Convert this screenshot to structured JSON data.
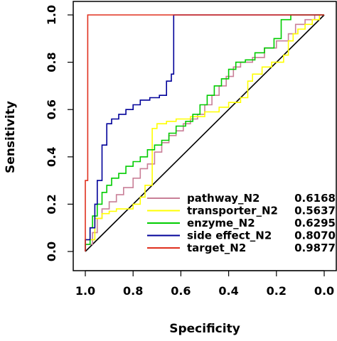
{
  "chart_data": {
    "type": "line",
    "title": "",
    "xlabel": "Specificity",
    "ylabel": "Sensitivity",
    "xlim": [
      1.0,
      0.0
    ],
    "ylim": [
      0.0,
      1.0
    ],
    "x_axis_reversed": true,
    "grid": false,
    "legend_position": "bottom-right",
    "x_ticks": [
      "1.0",
      "0.8",
      "0.6",
      "0.4",
      "0.2",
      "0.0"
    ],
    "x_tick_values": [
      1.0,
      0.8,
      0.6,
      0.4,
      0.2,
      0.0
    ],
    "y_ticks": [
      "0.0",
      "0.2",
      "0.4",
      "0.6",
      "0.8",
      "1.0"
    ],
    "y_tick_values": [
      0.0,
      0.2,
      0.4,
      0.6,
      0.8,
      1.0
    ],
    "reference_line": {
      "from": [
        1.0,
        0.0
      ],
      "to": [
        0.0,
        1.0
      ],
      "color": "#000000"
    },
    "series": [
      {
        "name": "pathway_N2",
        "auc": "0.6168",
        "color": "#c97f97",
        "points": [
          [
            1.0,
            0.0
          ],
          [
            0.97,
            0.03
          ],
          [
            0.95,
            0.08
          ],
          [
            0.93,
            0.14
          ],
          [
            0.9,
            0.18
          ],
          [
            0.87,
            0.21
          ],
          [
            0.84,
            0.24
          ],
          [
            0.8,
            0.27
          ],
          [
            0.77,
            0.31
          ],
          [
            0.74,
            0.35
          ],
          [
            0.71,
            0.37
          ],
          [
            0.68,
            0.42
          ],
          [
            0.65,
            0.46
          ],
          [
            0.62,
            0.49
          ],
          [
            0.59,
            0.51
          ],
          [
            0.56,
            0.54
          ],
          [
            0.53,
            0.56
          ],
          [
            0.5,
            0.58
          ],
          [
            0.47,
            0.62
          ],
          [
            0.44,
            0.66
          ],
          [
            0.41,
            0.7
          ],
          [
            0.38,
            0.74
          ],
          [
            0.35,
            0.78
          ],
          [
            0.3,
            0.8
          ],
          [
            0.25,
            0.82
          ],
          [
            0.2,
            0.86
          ],
          [
            0.15,
            0.89
          ],
          [
            0.12,
            0.92
          ],
          [
            0.08,
            0.96
          ],
          [
            0.04,
            0.98
          ],
          [
            0.0,
            1.0
          ]
        ]
      },
      {
        "name": "transporter_N2",
        "auc": "0.5637",
        "color": "#ffff00",
        "points": [
          [
            1.0,
            0.0
          ],
          [
            0.96,
            0.05
          ],
          [
            0.93,
            0.14
          ],
          [
            0.9,
            0.16
          ],
          [
            0.87,
            0.17
          ],
          [
            0.84,
            0.18
          ],
          [
            0.82,
            0.18
          ],
          [
            0.8,
            0.18
          ],
          [
            0.77,
            0.2
          ],
          [
            0.75,
            0.23
          ],
          [
            0.72,
            0.28
          ],
          [
            0.72,
            0.49
          ],
          [
            0.7,
            0.52
          ],
          [
            0.66,
            0.54
          ],
          [
            0.62,
            0.55
          ],
          [
            0.56,
            0.56
          ],
          [
            0.5,
            0.57
          ],
          [
            0.44,
            0.59
          ],
          [
            0.4,
            0.61
          ],
          [
            0.35,
            0.63
          ],
          [
            0.32,
            0.65
          ],
          [
            0.3,
            0.72
          ],
          [
            0.26,
            0.75
          ],
          [
            0.22,
            0.78
          ],
          [
            0.17,
            0.8
          ],
          [
            0.15,
            0.83
          ],
          [
            0.13,
            0.89
          ],
          [
            0.11,
            0.92
          ],
          [
            0.08,
            0.94
          ],
          [
            0.05,
            0.96
          ],
          [
            0.02,
            0.98
          ],
          [
            0.0,
            1.0
          ]
        ]
      },
      {
        "name": "enzyme_N2",
        "auc": "0.6295",
        "color": "#00cc00",
        "points": [
          [
            1.0,
            0.0
          ],
          [
            0.98,
            0.03
          ],
          [
            0.97,
            0.1
          ],
          [
            0.95,
            0.15
          ],
          [
            0.93,
            0.2
          ],
          [
            0.91,
            0.25
          ],
          [
            0.89,
            0.28
          ],
          [
            0.86,
            0.31
          ],
          [
            0.83,
            0.33
          ],
          [
            0.8,
            0.36
          ],
          [
            0.77,
            0.38
          ],
          [
            0.74,
            0.4
          ],
          [
            0.71,
            0.43
          ],
          [
            0.68,
            0.45
          ],
          [
            0.65,
            0.47
          ],
          [
            0.62,
            0.5
          ],
          [
            0.58,
            0.53
          ],
          [
            0.55,
            0.55
          ],
          [
            0.52,
            0.58
          ],
          [
            0.49,
            0.62
          ],
          [
            0.46,
            0.66
          ],
          [
            0.43,
            0.7
          ],
          [
            0.4,
            0.73
          ],
          [
            0.37,
            0.77
          ],
          [
            0.33,
            0.8
          ],
          [
            0.29,
            0.81
          ],
          [
            0.25,
            0.84
          ],
          [
            0.21,
            0.86
          ],
          [
            0.18,
            0.9
          ],
          [
            0.18,
            0.96
          ],
          [
            0.14,
            0.98
          ],
          [
            0.1,
            1.0
          ],
          [
            0.0,
            1.0
          ]
        ]
      },
      {
        "name": "side effect_N2",
        "auc": "0.8070",
        "color": "#000099",
        "points": [
          [
            1.0,
            0.0
          ],
          [
            0.98,
            0.05
          ],
          [
            0.96,
            0.1
          ],
          [
            0.95,
            0.2
          ],
          [
            0.93,
            0.3
          ],
          [
            0.91,
            0.45
          ],
          [
            0.89,
            0.54
          ],
          [
            0.86,
            0.56
          ],
          [
            0.83,
            0.58
          ],
          [
            0.8,
            0.6
          ],
          [
            0.77,
            0.62
          ],
          [
            0.73,
            0.64
          ],
          [
            0.69,
            0.65
          ],
          [
            0.66,
            0.66
          ],
          [
            0.64,
            0.72
          ],
          [
            0.63,
            0.75
          ],
          [
            0.63,
            1.0
          ],
          [
            0.0,
            1.0
          ]
        ]
      },
      {
        "name": "target_N2",
        "auc": "0.9877",
        "color": "#e0301e",
        "points": [
          [
            1.0,
            0.0
          ],
          [
            1.0,
            0.19
          ],
          [
            0.99,
            0.3
          ],
          [
            0.99,
            1.0
          ],
          [
            0.0,
            1.0
          ]
        ]
      }
    ]
  }
}
